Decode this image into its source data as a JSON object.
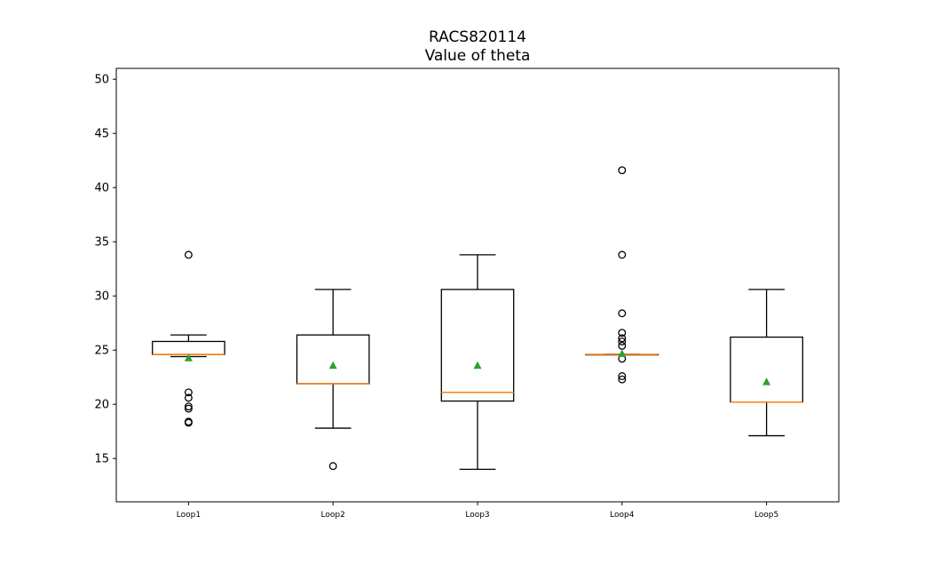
{
  "chart_data": {
    "type": "box",
    "title": "RACS820114",
    "subtitle": "Value of theta",
    "xlabel": "",
    "ylabel": "",
    "ylim": [
      11,
      51
    ],
    "yticks": [
      15,
      20,
      25,
      30,
      35,
      40,
      45,
      50
    ],
    "grid": false,
    "colors": {
      "box": "#000000",
      "median": "#ff7f0e",
      "mean": "#2ca02c",
      "flier": "#000000"
    },
    "categories": [
      "Loop1",
      "Loop2",
      "Loop3",
      "Loop4",
      "Loop5"
    ],
    "series": [
      {
        "category": "Loop1",
        "whisker_low": 24.4,
        "q1": 24.6,
        "median": 24.6,
        "q3": 25.8,
        "whisker_high": 26.4,
        "mean": 24.3,
        "outliers": [
          33.8,
          21.1,
          20.6,
          19.8,
          19.6,
          18.4,
          18.3
        ]
      },
      {
        "category": "Loop2",
        "whisker_low": 17.8,
        "q1": 21.9,
        "median": 21.9,
        "q3": 26.4,
        "whisker_high": 30.6,
        "mean": 23.6,
        "outliers": [
          14.3
        ]
      },
      {
        "category": "Loop3",
        "whisker_low": 14.0,
        "q1": 20.3,
        "median": 21.1,
        "q3": 30.6,
        "whisker_high": 33.8,
        "mean": 23.6,
        "outliers": []
      },
      {
        "category": "Loop4",
        "whisker_low": 24.6,
        "q1": 24.6,
        "median": 24.6,
        "q3": 24.6,
        "whisker_high": 24.6,
        "mean": 24.7,
        "outliers": [
          41.6,
          33.8,
          28.4,
          26.6,
          26.1,
          25.8,
          25.4,
          24.2,
          22.6,
          22.3
        ]
      },
      {
        "category": "Loop5",
        "whisker_low": 17.1,
        "q1": 20.2,
        "median": 20.2,
        "q3": 26.2,
        "whisker_high": 30.6,
        "mean": 22.1,
        "outliers": []
      }
    ]
  }
}
